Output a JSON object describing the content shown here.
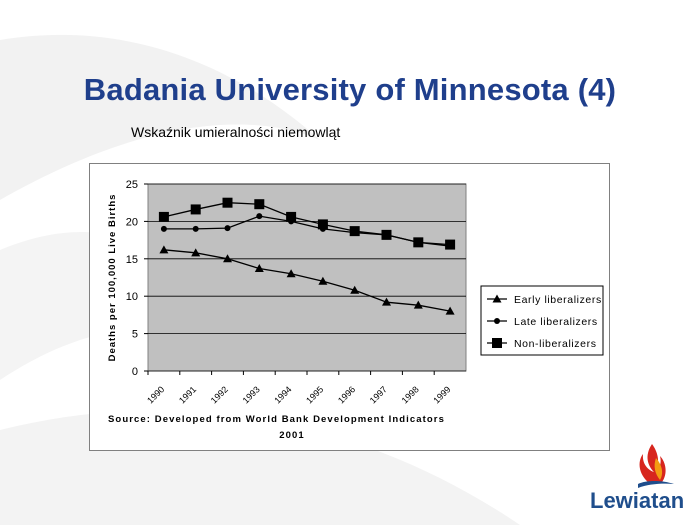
{
  "slide": {
    "title": "Badania University of Minnesota (4)",
    "subtitle": "Wskaźnik umieralności niemowląt",
    "logo_text": "Lewiatan"
  },
  "colors": {
    "title": "#1f3f8c",
    "plot_background": "#c0c0c0",
    "series": "#000000",
    "logo_blue": "#1f4e8c",
    "logo_red": "#d7261e",
    "logo_orange": "#f39c12"
  },
  "chart_data": {
    "type": "line",
    "title": "",
    "ylabel": "Deaths per 100,000 Live Births",
    "xlabel": "",
    "ylim": [
      0,
      25
    ],
    "y_ticks": [
      "0",
      "5",
      "10",
      "15",
      "20",
      "25"
    ],
    "categories": [
      "1990",
      "1991",
      "1992",
      "1993",
      "1994",
      "1995",
      "1996",
      "1997",
      "1998",
      "1999"
    ],
    "grid": true,
    "legend_position": "right",
    "series": [
      {
        "name": "Early liberalizers",
        "marker": "triangle",
        "values": [
          16.2,
          15.8,
          15.0,
          13.7,
          13.0,
          12.0,
          10.8,
          9.2,
          8.8,
          8.0
        ]
      },
      {
        "name": "Late liberalizers",
        "marker": "circle",
        "values": [
          19.0,
          19.0,
          19.1,
          20.7,
          20.0,
          19.0,
          18.5,
          18.2,
          17.2,
          16.7
        ]
      },
      {
        "name": "Non-liberalizers",
        "marker": "square",
        "values": [
          20.6,
          21.6,
          22.5,
          22.3,
          20.6,
          19.6,
          18.7,
          18.2,
          17.2,
          16.9
        ]
      }
    ],
    "source_note_line1": "Source: Developed from World Bank Development Indicators",
    "source_note_line2": "2001"
  }
}
